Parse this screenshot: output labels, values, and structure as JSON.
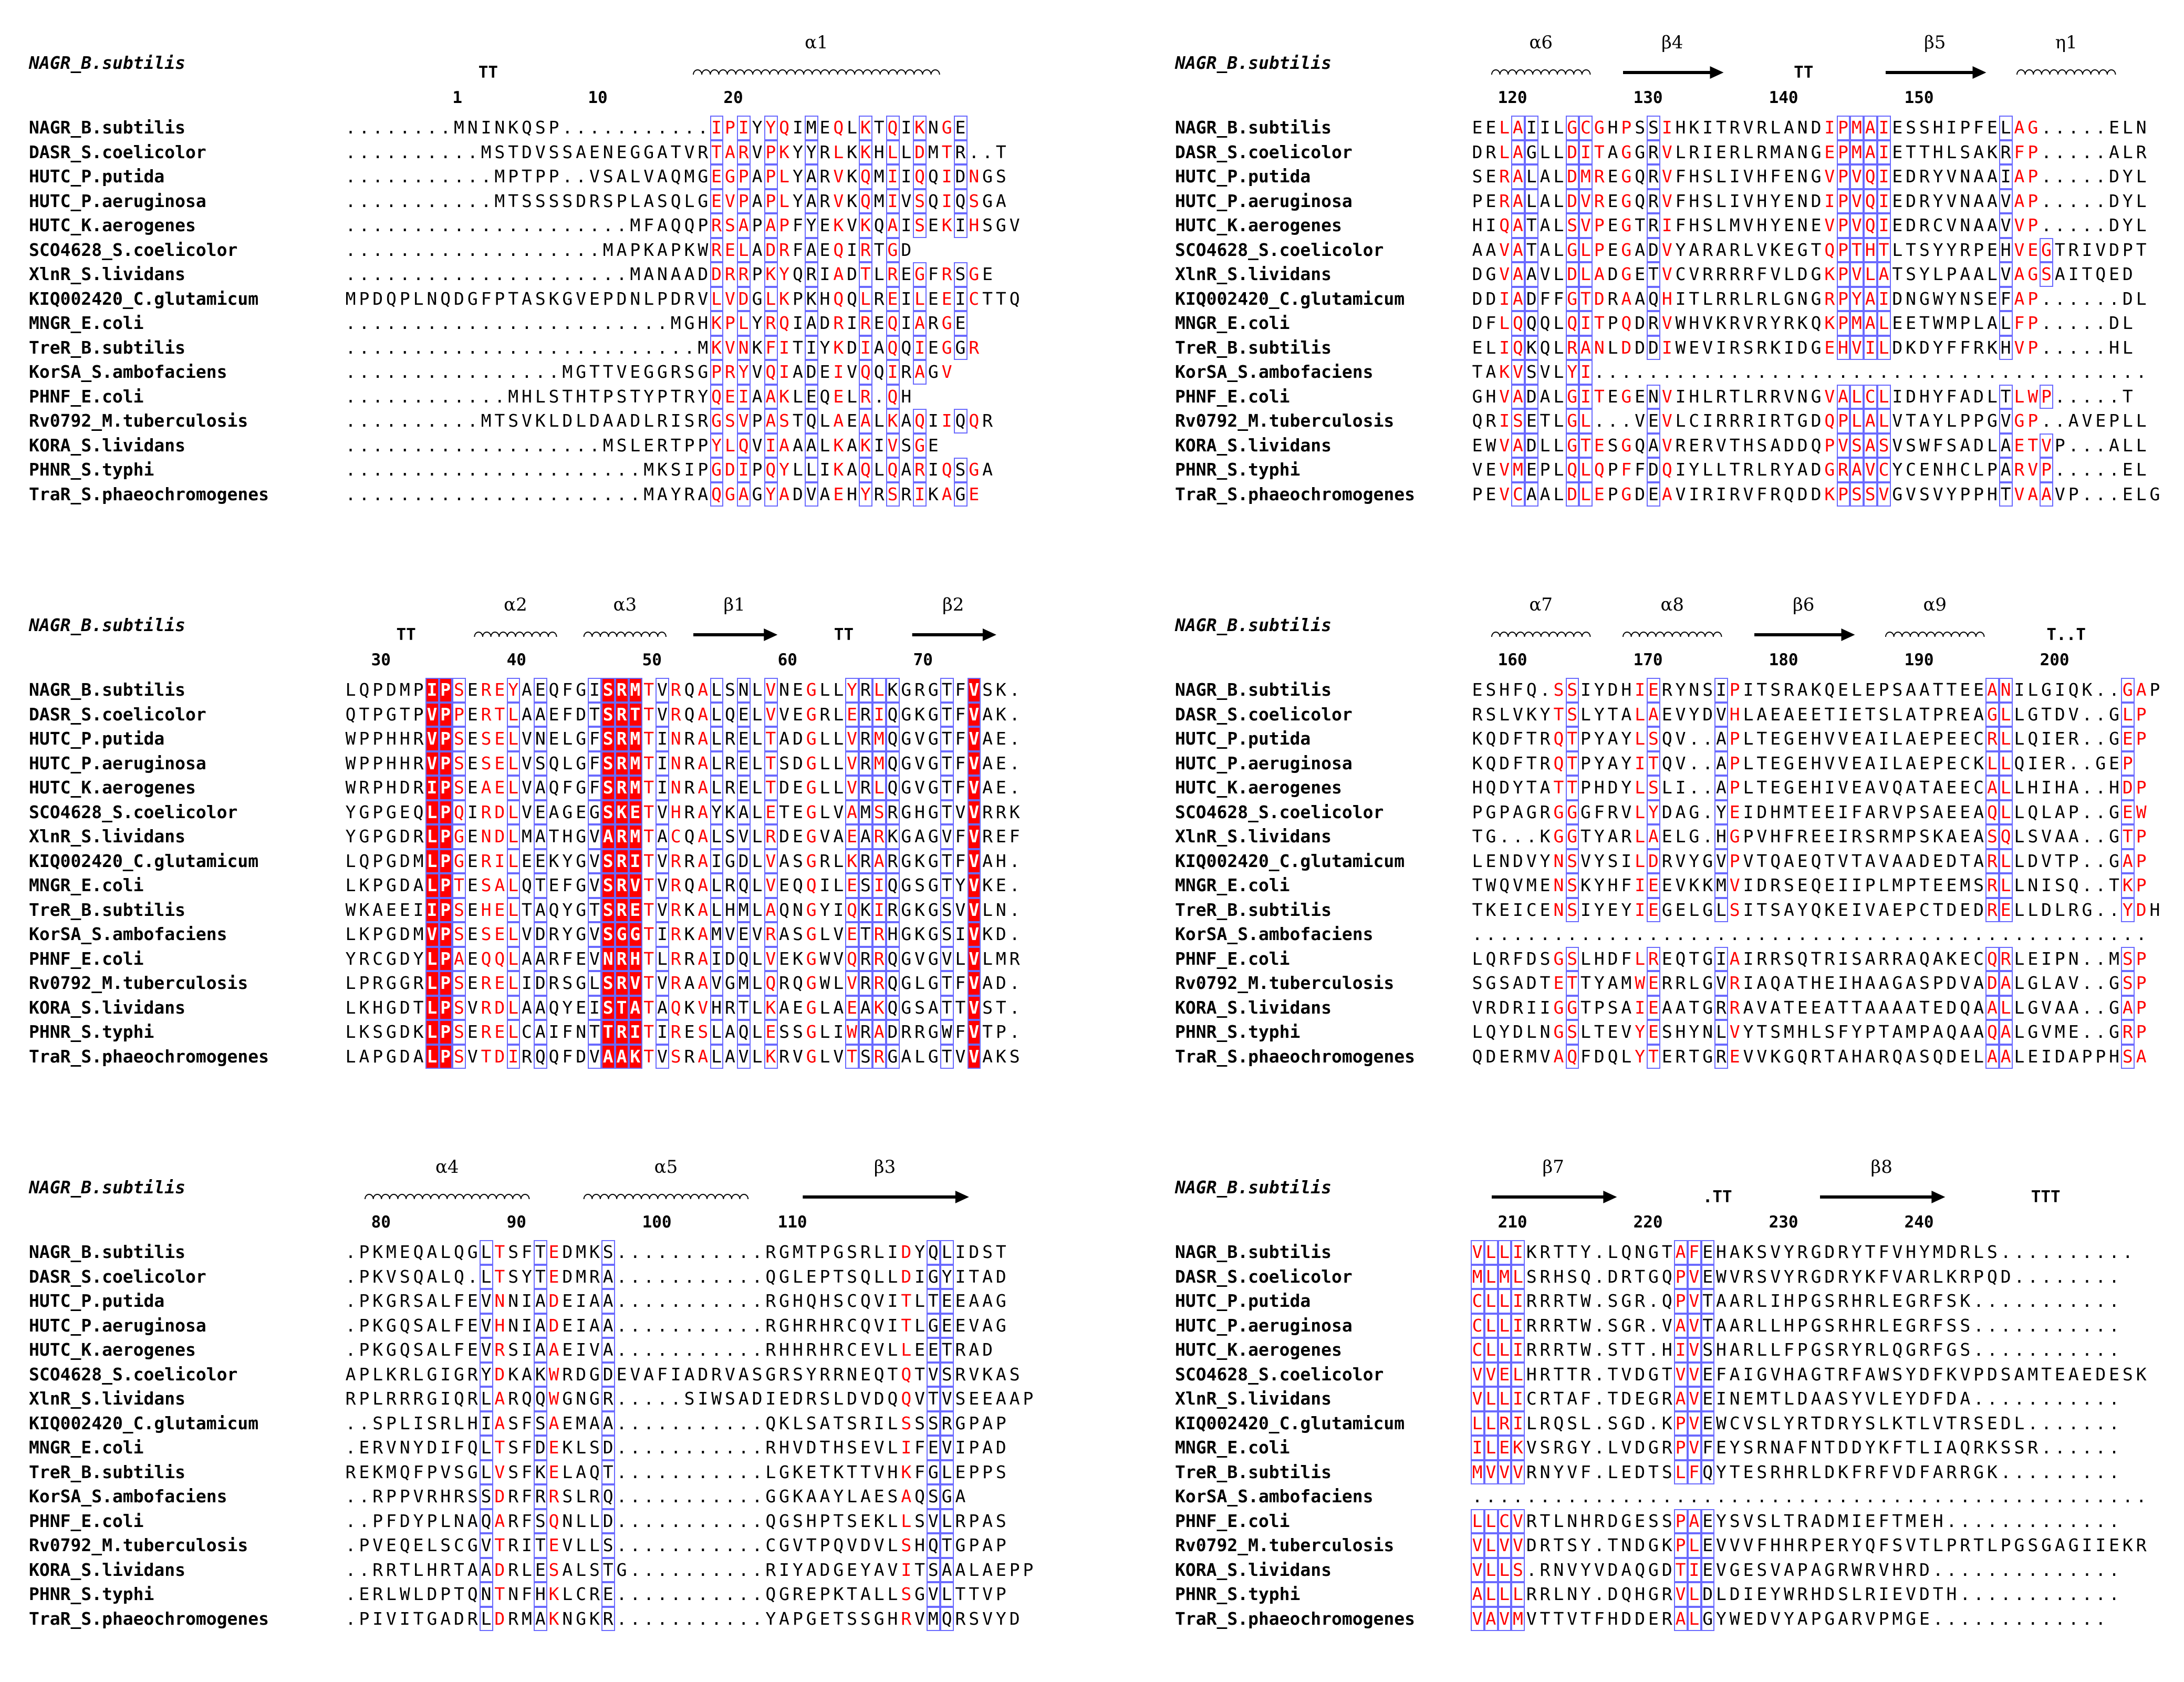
{
  "figure": {
    "reference_label": "NAGR_B.subtilis",
    "colors": {
      "identical_bg": "#ff0000",
      "similar_text": "#ff0000",
      "box": "#6a6aff"
    },
    "species": [
      "NAGR_B.subtilis",
      "DASR_S.coelicolor",
      "HUTC_P.putida",
      "HUTC_P.aeruginosa",
      "HUTC_K.aerogenes",
      "SCO4628_S.coelicolor",
      "XlnR_S.lividans",
      "KIQ002420_C.glutamicum",
      "MNGR_E.coli",
      "TreR_B.subtilis",
      "KorSA_S.ambofaciens",
      "PHNF_E.coli",
      "Rv0792_M.tuberculosis",
      "KORA_S.lividans",
      "PHNR_S.typhi",
      "TraR_S.phaeochromogenes"
    ],
    "blocks": [
      {
        "ss_labels": [
          {
            "text": "TT",
            "kind": "tt"
          },
          {
            "text": "α1",
            "kind": "helix"
          }
        ],
        "ruler": [
          "1",
          "10",
          "20"
        ],
        "seqs": [
          "........MNINKQSP...........IPIYYQIMEQLKTQIKNGE",
          "..........MSTDVSSAENEGGATVRTARVPKYYRLKKHLLDMTR..T",
          "...........MPTPP..VSALVAQMGEGPAPLYARVKQMIIQQIDNGS",
          "...........MTSSSSDRSPLASQLGEVPAPLYARVKQMIVSQIQSGA",
          ".....................MFAQQPRSAPAPFYEKVKQAISEKIHSGV",
          "...................MAPKAPKWRELADRFAEQIRTGD",
          ".....................MANAADDRRPKYQRIADTLREGFRSGE",
          "MPDQPLNQDGFPTASKGVEPDNLPDRVLVDGLKPKHQQLREILEEICTTQ",
          "........................MGHKPLYRQIADRIREQIARGE",
          "..........................MKVNKFITIYKDIAQQIEGGR",
          "................MGTTVEGGRSGPRYVQIADEIVQQIRAGV",
          "............MHLSTHTPSTYPTRYQEIAAKLEQELR.QH",
          "..........MTSVKLDLDAADLRISRGSVPASTQLAEALKAQIIQQR",
          "...................MSLERTPPYLQVIAAALKAKIVSGE",
          "......................MKSIPGDIPQYLLIKAQLQARIQSGA",
          "......................MAYRAQGAGYADVAEHYRSRIKAGE"
        ]
      },
      {
        "ss_labels": [
          {
            "text": "TT",
            "kind": "tt"
          },
          {
            "text": "α2",
            "kind": "helix"
          },
          {
            "text": "α3",
            "kind": "helix"
          },
          {
            "text": "β1",
            "kind": "strand"
          },
          {
            "text": "TT",
            "kind": "tt"
          },
          {
            "text": "β2",
            "kind": "strand"
          }
        ],
        "ruler": [
          "30",
          "40",
          "50",
          "60",
          "70"
        ],
        "seqs": [
          "LQPDMPIPSEREYAEQFGISRMTVRQALSNLVNEGLLYRLKGRGTFVSK.",
          "QTPGTPVPPERTLAAEFDTSRTTVRQALQELVVEGRLERIQGKGTFVAK.",
          "WPPHHRVPSESELVNELGFSRMTINRALRELTADGLLVRMQGVGTFVAE.",
          "WPPHHRVPSESELVSQLGFSRMTINRALRELTSDGLLVRMQGVGTFVAE.",
          "WRPHDRIPSEAELVAQFGFSRMTINRALRELTDEGLLVRLQGVGTFVAE.",
          "YGPGEQLPQIRDLVEAGEGSKETVHRAYKALETEGLVAMSRGHGTVVRRK",
          "YGPGDRLPGENDLMATHGVARMTACQALSVLRDEGVAEARKGAGVFVREF",
          "LQPGDMLPGERILEEKYGVSRITVRRAIGDLVASGRLKRARGKGTFVAH.",
          "LKPGDALPTESALQTEFGVSRVTVRQALRQLVEQQILESIQGSGTYVKE.",
          "WKAEEIIPSEHELTAQYGTSRETVRKALHMLAQNGYIQKIRGKGSVVLN.",
          "LKPGDMVPSESELVDRYGVSGGTIRKAMVEVRASGLVETRHGKGSIVKD.",
          "YRCGDYLPAEQQLAARFEVNRHTLRRAIDQLVEKGWVQRRQGVGVLVLMR",
          "LPRGGRLPSERELIDRSGLSRVTVRAAVGMLQRQGWLVRRQGLGTFVAD.",
          "LKHGDTLPSVRDLAAQYEISTATAQKVHRTLKAEGLAEAKQGSATTVST.",
          "LKSGDKLPSERELCAIFNTTRITIRESLAQLESSGLIWRADRRGWFVTP.",
          "LAPGDALPSVTDIRQQFDVAAKTVSRALAVLKRVGLVTSRGALGTVVAKS"
        ]
      },
      {
        "ss_labels": [
          {
            "text": "α4",
            "kind": "helix"
          },
          {
            "text": "α5",
            "kind": "helix"
          },
          {
            "text": "β3",
            "kind": "strand"
          }
        ],
        "ruler": [
          "80",
          "90",
          "100",
          "110"
        ],
        "seqs": [
          ".PKMEQALQGLTSFTEDMKS...........RGMTPGSRLIDYQLIDST",
          ".PKVSQALQ.LTSYTEDMRA...........QGLEPTSQLLDIGYITAD",
          ".PKGRSALFEVNNIADEIAA...........RGHQHSCQVITLTEEAAG",
          ".PKGQSALFEVHNIADEIAA...........RGHRHRCQVITLGEEVAG",
          ".PKGQSALFEVRSIAAEIVA...........RHHRHRCEVLLEETRAD",
          "APLKRLGIGRYDKAKWRDGDEVAFIADRVASGRSYRRNEQTQTVSRVKAS",
          "RPLRRRGIQRLARQQWGNGR.....SIWSADIEDRSLDVDQQVTVSEEAAP",
          "..SPLISRLHIASFSAEMAA...........QKLSATSRILSSSRGPAP",
          ".ERVNYDIFQLTSFDEKLSD...........RHVDTHSEVLIFEVIPAD",
          "REKMQFPVSGLVSFKELAQT...........LGKETKTTVHKFGLEPPS",
          "..RPPVRHRSSDRFRRSLRQ...........GGKAAYLAESAQSGA",
          "..PFDYPLNAQARFSQNLLD...........QGSHPTSEKLLSVLRPAS",
          ".PVEQELSCGVTRITEVLLS...........CGVTPQVDVLSHQTGPAP",
          "..RRTLHRTAADRLESALSTG..........RIYADGEYAVITSAALAEPP",
          ".ERLWLDPTQNTNFHKLCRE...........QGREPKTALLSGVLTTVP",
          ".PIVITGADRLDRMAKNGKR...........YAPGETSSGHRVMQRSVYD"
        ]
      },
      {
        "ss_labels": [
          {
            "text": "α6",
            "kind": "helix"
          },
          {
            "text": "β4",
            "kind": "strand"
          },
          {
            "text": "TT",
            "kind": "tt"
          },
          {
            "text": "β5",
            "kind": "strand"
          },
          {
            "text": "η1",
            "kind": "helix"
          }
        ],
        "ruler": [
          "120",
          "130",
          "140",
          "150"
        ],
        "seqs": [
          "EELAIILGCGHPSSIHKITRVRLANDIPMAIESSHIPFELAG.....ELN",
          "DRLAGLLDITAGGRVLRIERLRMANGEPMAIETTHLSAKRFP.....ALR",
          "SERALALDMREGQRVFHSLIVHFENGVPVQIEDRYVNAAIAP.....DYL",
          "PERALALDVREGQRVFHSLIVHYENDIPVQIEDRYVNAAVAP.....DYL",
          "HIQATALSVPEGTRIFHSLMVHYENEVPVQIEDRCVNAAVVP.....DYL",
          "AAVATALGLPEGADVYARARLVKEGTQPTHTLTSYYRPEHVEGTRIVDPT",
          "DGVAAVLDLADGETVCVRRRRFVLDGKPVLATSYLPAALVAGSAITQED",
          "DDIADFFGTDRAAQHITLRRLRLGNGRPYAIDNGWYNSEFAP......DL",
          "DFLQQQLQITPQDRVWHVKRVRYRKQKPMALEETWMPLALFP.....DL",
          "ELIQKQLRANLDDDIWEVIRSRKIDGEHVILDKDYFFRKHVP.....HL",
          "TAKVSVLYI.........................................",
          "GHVADALGITEGENVIHLRTLRRVNGVALCLIDHYFADLTLWP.....T",
          "QRISETLGL...VEVLCIRRRIRTGDQPLALVTAYLPPGVGP..AVEPLL",
          "EWVADLLGTESGQAVRERVTHSADDQPVSASVSWFSADLAETVP...ALL",
          "VEVMEPLQLQPFFDQIYLLTRLRYADGRAVCYCENHCLPARVP.....EL",
          "PEVCAALDLEPGDEAVIRIRVFRQDDKPSSVGVSVYPPHTVAAVP...ELG"
        ]
      },
      {
        "ss_labels": [
          {
            "text": "α7",
            "kind": "helix"
          },
          {
            "text": "α8",
            "kind": "helix"
          },
          {
            "text": "β6",
            "kind": "strand"
          },
          {
            "text": "α9",
            "kind": "helix"
          },
          {
            "text": "T..T",
            "kind": "tt"
          }
        ],
        "ruler": [
          "160",
          "170",
          "180",
          "190",
          "200"
        ],
        "seqs": [
          "ESHFQ.SSIYDHIERYNSIPITSRAKQELEPSAATTEEANILGIQK..GAP",
          "RSLVKYTSLYTALAEVYDVHLAEAEETIETSLATPREAGLLGTDV..GLP",
          "KQDFTRQTPYAYLSQV..APLTEGEHVVEAILAEPEECRLLQIER..GEP",
          "KQDFTRQTPYAYITQV..APLTEGEHVVEAILAEPECKLLQIER..GEP",
          "HQDYTATTPHDYLSLI..APLTEGEHIVEAVQATAEECALLHIHA..HDP",
          "PGPAGRGGGFRVLYDAG.YEIDHMTEEIFARVPSAEEAQLLQLAP..GEW",
          "TG...KGGTYARLAELG.HGPVHFREEIRSRMPSKAEASQLSVAA..GTP",
          "LENDVYNSVYSILDRVYGVPVTQAEQTVTAVAADEDTARLLDVTP..GAP",
          "TWQVMENSKYHFIEEVKKMVIDRSEQEIIPLMPTEEMSRLLNISQ..TKP",
          "TKEICENSIYEYIEGELGLSITSAYQKEIVAEPCTDEDRELLDLRG..YDH",
          "..................................................",
          "LQRFDSGSLHDFLREQTGIAIRRSQTRISARRAQAKECQRLEIPN..MSP",
          "SGSADTETTYAMWERRLGVRIAQATHEIHAAGASPDVADALGLAV..GSP",
          "VRDRIIGGTPSAIEAATGRRAVATEEATTAAAATEDQAALLGVAA..GAP",
          "LQYDLNGSLTEVYESHYNLVYTSMHLSFYPTAMPAQAAQALGVME..GRP",
          "QDERMVAQFDQLYTERTGREVVKGQRTAHARQASQDELAALEIDAPPHSA"
        ]
      },
      {
        "ss_labels": [
          {
            "text": "β7",
            "kind": "strand"
          },
          {
            "text": ".TT",
            "kind": "tt"
          },
          {
            "text": "β8",
            "kind": "strand"
          },
          {
            "text": "TTT",
            "kind": "tt"
          }
        ],
        "ruler": [
          "210",
          "220",
          "230",
          "240"
        ],
        "seqs": [
          "VLLIKRTTY.LQNGTAFEHAKSVYRGDRYTFVHYMDRLS..........",
          "MLMLSRHSQ.DRTGQPVEWVRSVYRGDRYKFVARLKRPQD........",
          "CLLIRRRTW.SGR.QPVTAARLIHPGSRHRLEGRFSK...........",
          "CLLIRRRTW.SGR.VAVTAARLLHPGSRHRLEGRFSS...........",
          "CLLIRRRTW.STT.HIVSHARLLFPGSRYRLQGRFGS...........",
          "VVELHRTTR.TVDGTVVEFAIGVHAGTRFAWSYDFKVPDSAMTEAEDESK",
          "VLLICRTAF.TDEGRAVEINEMTLDAASYVLEYDFDA...........",
          "LLRILRQSL.SGD.KPVEWCVSLYRTDRYSLKTLVTRSEDL.......",
          "ILEKVSRGY.LVDGRPVFEYSRNAFNTDDYKFTLIAQRKSSR......",
          "MVVVRNYVF.LEDTSLFQYTESRHRLDKFRFVDFARRGK.........",
          "..................................................",
          "LLCVRTLNHRDGESSPAEYSVSLTRADMIEFTMEH.............",
          "VLVVDRTSY.TNDGKPLEVVVFHHRPERYQFSVTLPRTLPGSGAGIIEKR",
          "VLLS.RNVYVDAQGDTIEVGESVAPAGRWRVHRD..............",
          "ALLLRRLNY.DQHGRVLDLDIEYWRHDSLRIEVDTH............",
          "VAVMVTTVTFHDDERALGYWEDVYAPGARVPMGE............."
        ]
      }
    ]
  }
}
